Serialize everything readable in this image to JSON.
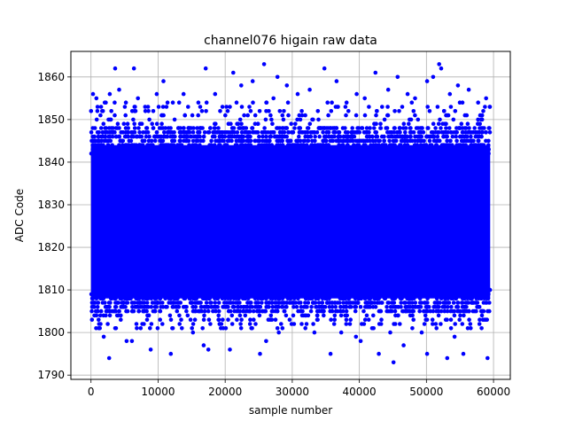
{
  "chart_data": {
    "type": "scatter",
    "title": "channel076 higain raw data",
    "xlabel": "sample number",
    "ylabel": "ADC Code",
    "xlim": [
      -3000,
      62500
    ],
    "ylim": [
      1789,
      1866
    ],
    "xticks": [
      0,
      10000,
      20000,
      30000,
      40000,
      50000,
      60000
    ],
    "xtick_labels": [
      "0",
      "10000",
      "20000",
      "30000",
      "40000",
      "50000",
      "60000"
    ],
    "yticks": [
      1790,
      1800,
      1810,
      1820,
      1830,
      1840,
      1850,
      1860
    ],
    "ytick_labels": [
      "1790",
      "1800",
      "1810",
      "1820",
      "1830",
      "1840",
      "1850",
      "1860"
    ],
    "grid": true,
    "marker_color": "#0000ff",
    "series": [
      {
        "x_range": [
          0,
          59500
        ],
        "dense_band": [
          1805,
          1848
        ],
        "outliers": [
          {
            "x": 300,
            "y": 1856
          },
          {
            "x": 800,
            "y": 1855
          },
          {
            "x": 1500,
            "y": 1853
          },
          {
            "x": 2200,
            "y": 1854
          },
          {
            "x": 2800,
            "y": 1856
          },
          {
            "x": 3600,
            "y": 1862
          },
          {
            "x": 4200,
            "y": 1857
          },
          {
            "x": 5200,
            "y": 1854
          },
          {
            "x": 6400,
            "y": 1862
          },
          {
            "x": 7000,
            "y": 1855
          },
          {
            "x": 8500,
            "y": 1853
          },
          {
            "x": 9800,
            "y": 1856
          },
          {
            "x": 10800,
            "y": 1859
          },
          {
            "x": 12200,
            "y": 1854
          },
          {
            "x": 13800,
            "y": 1856
          },
          {
            "x": 16000,
            "y": 1854
          },
          {
            "x": 17100,
            "y": 1862
          },
          {
            "x": 18500,
            "y": 1856
          },
          {
            "x": 20200,
            "y": 1853
          },
          {
            "x": 21200,
            "y": 1861
          },
          {
            "x": 22400,
            "y": 1858
          },
          {
            "x": 24100,
            "y": 1859
          },
          {
            "x": 25800,
            "y": 1863
          },
          {
            "x": 27200,
            "y": 1855
          },
          {
            "x": 27800,
            "y": 1860
          },
          {
            "x": 29200,
            "y": 1858
          },
          {
            "x": 30800,
            "y": 1856
          },
          {
            "x": 32600,
            "y": 1857
          },
          {
            "x": 34800,
            "y": 1862
          },
          {
            "x": 36600,
            "y": 1859
          },
          {
            "x": 38100,
            "y": 1854
          },
          {
            "x": 39600,
            "y": 1856
          },
          {
            "x": 40800,
            "y": 1855
          },
          {
            "x": 42400,
            "y": 1861
          },
          {
            "x": 44300,
            "y": 1857
          },
          {
            "x": 45700,
            "y": 1860
          },
          {
            "x": 47200,
            "y": 1856
          },
          {
            "x": 48300,
            "y": 1855
          },
          {
            "x": 50100,
            "y": 1859
          },
          {
            "x": 51000,
            "y": 1860
          },
          {
            "x": 51900,
            "y": 1863
          },
          {
            "x": 52200,
            "y": 1862
          },
          {
            "x": 53500,
            "y": 1856
          },
          {
            "x": 54700,
            "y": 1858
          },
          {
            "x": 56300,
            "y": 1857
          },
          {
            "x": 57700,
            "y": 1854
          },
          {
            "x": 58900,
            "y": 1855
          },
          {
            "x": 500,
            "y": 1804
          },
          {
            "x": 1200,
            "y": 1802
          },
          {
            "x": 1900,
            "y": 1799
          },
          {
            "x": 2700,
            "y": 1794
          },
          {
            "x": 3600,
            "y": 1801
          },
          {
            "x": 5300,
            "y": 1798
          },
          {
            "x": 6100,
            "y": 1798
          },
          {
            "x": 7400,
            "y": 1801
          },
          {
            "x": 8900,
            "y": 1796
          },
          {
            "x": 10300,
            "y": 1803
          },
          {
            "x": 11900,
            "y": 1795
          },
          {
            "x": 13200,
            "y": 1802
          },
          {
            "x": 15200,
            "y": 1800
          },
          {
            "x": 16800,
            "y": 1797
          },
          {
            "x": 17500,
            "y": 1796
          },
          {
            "x": 19000,
            "y": 1803
          },
          {
            "x": 20700,
            "y": 1796
          },
          {
            "x": 22300,
            "y": 1802
          },
          {
            "x": 23900,
            "y": 1801
          },
          {
            "x": 25200,
            "y": 1795
          },
          {
            "x": 26100,
            "y": 1798
          },
          {
            "x": 28000,
            "y": 1800
          },
          {
            "x": 29600,
            "y": 1803
          },
          {
            "x": 31400,
            "y": 1802
          },
          {
            "x": 33300,
            "y": 1800
          },
          {
            "x": 35700,
            "y": 1795
          },
          {
            "x": 37300,
            "y": 1800
          },
          {
            "x": 38600,
            "y": 1802
          },
          {
            "x": 39500,
            "y": 1799
          },
          {
            "x": 40200,
            "y": 1798
          },
          {
            "x": 41900,
            "y": 1801
          },
          {
            "x": 42900,
            "y": 1795
          },
          {
            "x": 44600,
            "y": 1800
          },
          {
            "x": 45100,
            "y": 1793
          },
          {
            "x": 46600,
            "y": 1797
          },
          {
            "x": 47900,
            "y": 1801
          },
          {
            "x": 49300,
            "y": 1800
          },
          {
            "x": 50100,
            "y": 1795
          },
          {
            "x": 51400,
            "y": 1802
          },
          {
            "x": 53100,
            "y": 1794
          },
          {
            "x": 54200,
            "y": 1799
          },
          {
            "x": 55500,
            "y": 1795
          },
          {
            "x": 56600,
            "y": 1801
          },
          {
            "x": 57900,
            "y": 1802
          },
          {
            "x": 59100,
            "y": 1794
          }
        ]
      }
    ]
  }
}
